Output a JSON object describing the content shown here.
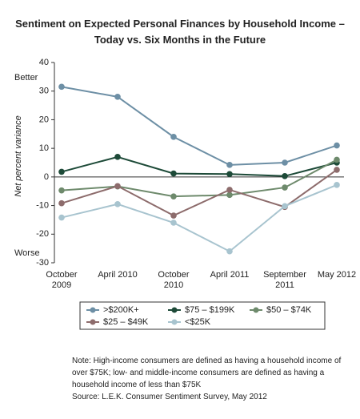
{
  "chart_data": {
    "type": "line",
    "title": "Sentiment on Expected Personal Finances by Household Income – Today vs. Six Months in the Future",
    "y_label": "Net percent variance",
    "annotations": [
      "Better",
      "Worse"
    ],
    "categories": [
      "October 2009",
      "April 2010",
      "October 2010",
      "April 2011",
      "September 2011",
      "May 2012"
    ],
    "series": [
      {
        "name": ">$200K+",
        "color": "#6d8fa5",
        "values": [
          31.5,
          28,
          14,
          4.2,
          5,
          11
        ]
      },
      {
        "name": "$75 – $199K",
        "color": "#1d4a38",
        "values": [
          1.8,
          7,
          1.2,
          1,
          0.3,
          5
        ]
      },
      {
        "name": "$50 – $74K",
        "color": "#6e8a6c",
        "values": [
          -4.7,
          -3.3,
          -6.8,
          -6.3,
          -3.7,
          6
        ]
      },
      {
        "name": "$25 – $49K",
        "color": "#8d6c6c",
        "values": [
          -9.2,
          -3.2,
          -13.5,
          -4.5,
          -10.5,
          2.5
        ]
      },
      {
        "name": "<$25K",
        "color": "#a8c4cf",
        "values": [
          -14.2,
          -9.5,
          -16,
          -26,
          -10.2,
          -2.8
        ]
      }
    ],
    "ylim": [
      -30,
      40
    ],
    "yticks": [
      -30,
      -20,
      -10,
      0,
      10,
      20,
      30,
      40
    ],
    "note": "Note:  High-income consumers are defined as having a household income of over $75K; low- and middle-income consumers are defined as having a household income of less than $75K",
    "source": "Source:  L.E.K. Consumer Sentiment Survey, May 2012"
  }
}
